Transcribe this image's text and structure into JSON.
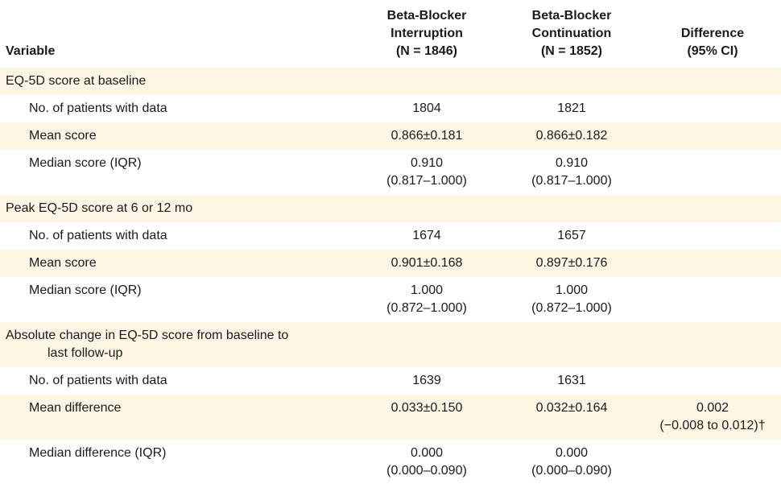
{
  "header": {
    "variable": "Variable",
    "interruption": [
      "Beta-Blocker",
      "Interruption",
      "(N = 1846)"
    ],
    "continuation": [
      "Beta-Blocker",
      "Continuation",
      "(N = 1852)"
    ],
    "difference": [
      "Difference",
      "(95% CI)"
    ]
  },
  "sections": [
    {
      "title": "EQ-5D score at baseline",
      "rows": [
        {
          "label": "No. of patients with data",
          "interruption": [
            "1804"
          ],
          "continuation": [
            "1821"
          ],
          "difference": []
        },
        {
          "label": "Mean score",
          "interruption": [
            "0.866±0.181"
          ],
          "continuation": [
            "0.866±0.182"
          ],
          "difference": []
        },
        {
          "label": "Median score (IQR)",
          "interruption": [
            "0.910",
            "(0.817–1.000)"
          ],
          "continuation": [
            "0.910",
            "(0.817–1.000)"
          ],
          "difference": []
        }
      ]
    },
    {
      "title": "Peak EQ-5D score at 6 or 12 mo",
      "rows": [
        {
          "label": "No. of patients with data",
          "interruption": [
            "1674"
          ],
          "continuation": [
            "1657"
          ],
          "difference": []
        },
        {
          "label": "Mean score",
          "interruption": [
            "0.901±0.168"
          ],
          "continuation": [
            "0.897±0.176"
          ],
          "difference": []
        },
        {
          "label": "Median score (IQR)",
          "interruption": [
            "1.000",
            "(0.872–1.000)"
          ],
          "continuation": [
            "1.000",
            "(0.872–1.000)"
          ],
          "difference": []
        }
      ]
    },
    {
      "title": [
        "Absolute change in EQ-5D score from baseline to",
        "last follow-up"
      ],
      "rows": [
        {
          "label": "No. of patients with data",
          "interruption": [
            "1639"
          ],
          "continuation": [
            "1631"
          ],
          "difference": []
        },
        {
          "label": "Mean difference",
          "interruption": [
            "0.033±0.150"
          ],
          "continuation": [
            "0.032±0.164"
          ],
          "difference": [
            "0.002",
            "(−0.008 to 0.012)†"
          ]
        },
        {
          "label": "Median difference (IQR)",
          "interruption": [
            "0.000",
            "(0.000–0.090)"
          ],
          "continuation": [
            "0.000",
            "(0.000–0.090)"
          ],
          "difference": []
        }
      ]
    }
  ]
}
